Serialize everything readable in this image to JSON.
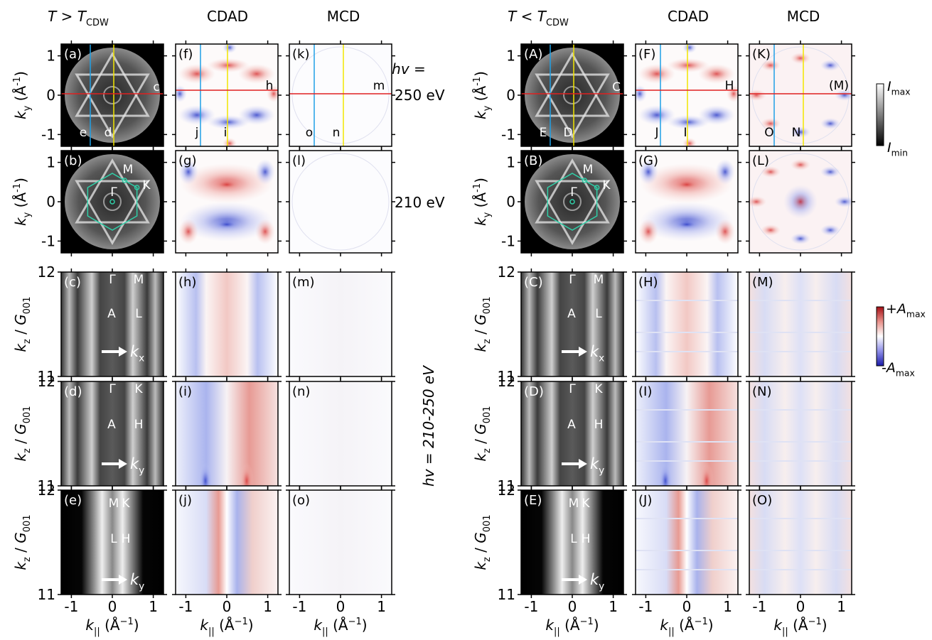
{
  "headers": [
    {
      "text": "T > T",
      "sub": "CDW"
    },
    {
      "text": "CDAD"
    },
    {
      "text": "MCD"
    },
    {
      "text": "T < T",
      "sub": "CDW"
    },
    {
      "text": "CDAD"
    },
    {
      "text": "MCD"
    }
  ],
  "photon_energy": {
    "label": "hv =",
    "upper": "250 eV",
    "lower": "210 eV",
    "range": "hv = 210-250 eV"
  },
  "axes": {
    "ky_label": {
      "var": "k",
      "sub": "y",
      "unit": " (Å",
      "exp": "-1",
      "close": ")"
    },
    "kz_label": {
      "var": "k",
      "sub": "z",
      "sep": " / ",
      "var2": "G",
      "sub2": "001"
    },
    "kpar_label": {
      "var": "k",
      "sub": "||",
      "unit": " (Å",
      "exp": "−1",
      "close": ")"
    },
    "ky_lim": [
      -1.3,
      1.3
    ],
    "ky_ticks": [
      -1,
      0,
      1
    ],
    "kz_lim": [
      11,
      12
    ],
    "kz_ticks": [
      11,
      12
    ],
    "k_lim": [
      -1.25,
      1.25
    ],
    "k_ticks": [
      -1,
      0,
      1
    ]
  },
  "colorbars": {
    "intensity": {
      "top": {
        "var": "I",
        "sub": "max"
      },
      "bottom": {
        "var": "I",
        "sub": "min"
      }
    },
    "asymmetry": {
      "top": {
        "var": "+A",
        "sub": "max"
      },
      "bottom": {
        "var": "-A",
        "sub": "max"
      }
    }
  },
  "halves": [
    {
      "panels": [
        [
          {
            "label": "(a)",
            "notes": [
              "c",
              "e",
              "d"
            ]
          },
          {
            "label": "(f)",
            "notes": [
              "h",
              "j",
              "i"
            ]
          },
          {
            "label": "(k)",
            "notes": [
              "m",
              "o",
              "n"
            ]
          }
        ],
        [
          {
            "label": "(b)",
            "notes": [
              "M",
              "K",
              "Γ"
            ]
          },
          {
            "label": "(g)",
            "notes": []
          },
          {
            "label": "(l)",
            "notes": []
          }
        ],
        [
          {
            "label": "(c)",
            "notes": [
              "Γ",
              "M",
              "A",
              "L"
            ],
            "arrow": {
              "var": "k",
              "sub": "x"
            }
          },
          {
            "label": "(h)",
            "notes": []
          },
          {
            "label": "(m)",
            "notes": []
          }
        ],
        [
          {
            "label": "(d)",
            "notes": [
              "Γ",
              "K",
              "A",
              "H"
            ],
            "arrow": {
              "var": "k",
              "sub": "y"
            }
          },
          {
            "label": "(i)",
            "notes": []
          },
          {
            "label": "(n)",
            "notes": []
          }
        ],
        [
          {
            "label": "(e)",
            "notes": [
              "M",
              "K",
              "L",
              "H"
            ],
            "arrow": {
              "var": "k",
              "sub": "y"
            }
          },
          {
            "label": "(j)",
            "notes": []
          },
          {
            "label": "(o)",
            "notes": []
          }
        ]
      ]
    },
    {
      "panels": [
        [
          {
            "label": "(A)",
            "notes": [
              "C",
              "E",
              "D"
            ]
          },
          {
            "label": "(F)",
            "notes": [
              "H",
              "J",
              "I"
            ]
          },
          {
            "label": "(K)",
            "notes": [
              "(M)",
              "O",
              "N"
            ]
          }
        ],
        [
          {
            "label": "(B)",
            "notes": [
              "M",
              "K",
              "Γ"
            ]
          },
          {
            "label": "(G)",
            "notes": []
          },
          {
            "label": "(L)",
            "notes": []
          }
        ],
        [
          {
            "label": "(C)",
            "notes": [
              "Γ",
              "M",
              "A",
              "L"
            ],
            "arrow": {
              "var": "k",
              "sub": "x"
            }
          },
          {
            "label": "(H)",
            "notes": []
          },
          {
            "label": "(M)",
            "notes": []
          }
        ],
        [
          {
            "label": "(D)",
            "notes": [
              "Γ",
              "K",
              "A",
              "H"
            ],
            "arrow": {
              "var": "k",
              "sub": "y"
            }
          },
          {
            "label": "(I)",
            "notes": []
          },
          {
            "label": "(N)",
            "notes": []
          }
        ],
        [
          {
            "label": "(E)",
            "notes": [
              "M",
              "K",
              "L",
              "H"
            ],
            "arrow": {
              "var": "k",
              "sub": "y"
            }
          },
          {
            "label": "(J)",
            "notes": []
          },
          {
            "label": "(O)",
            "notes": []
          }
        ]
      ]
    }
  ]
}
